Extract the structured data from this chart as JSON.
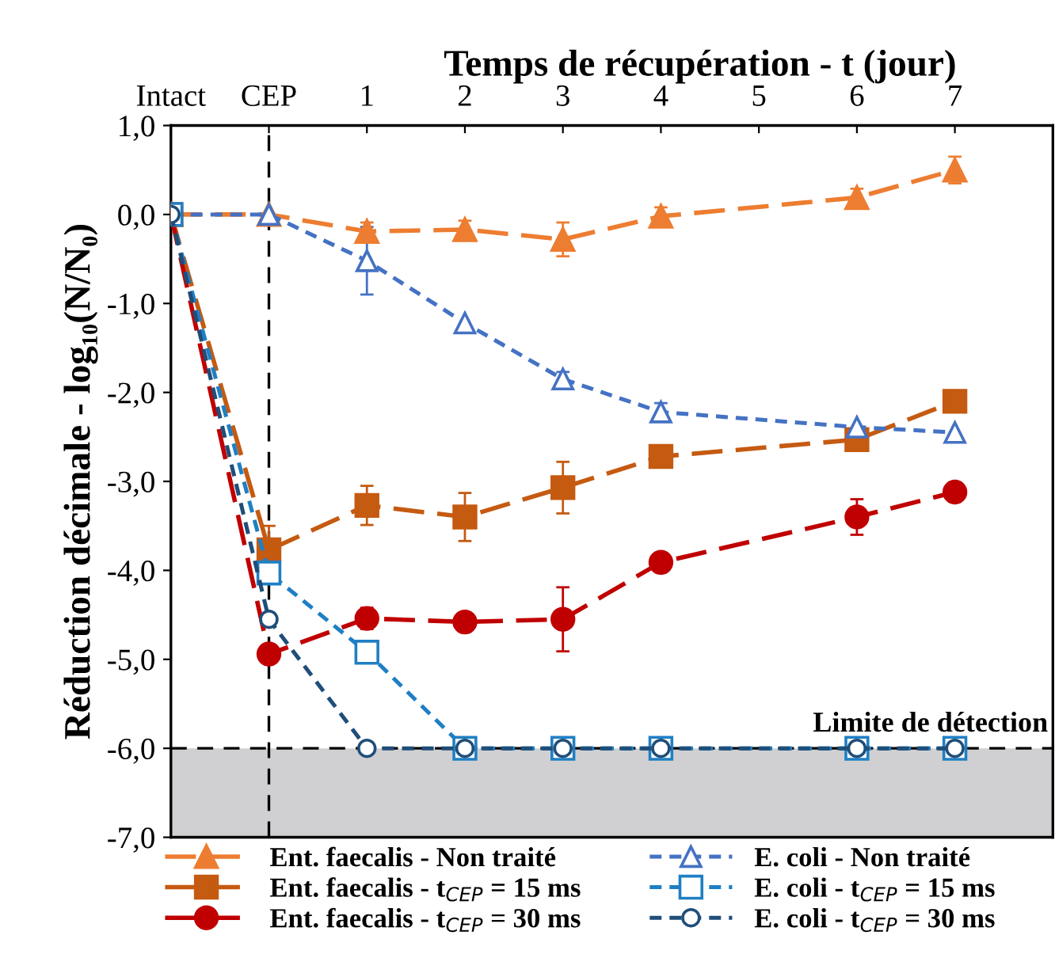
{
  "chart_data": {
    "type": "line",
    "xlabel": "Temps de récupération - t (jour)",
    "ylabel": "Réduction décimale - log₁₀(N/N₀)",
    "x": [
      -1,
      0,
      1,
      2,
      3,
      4,
      6,
      7
    ],
    "xlim": [
      -1,
      8
    ],
    "xticks": [
      {
        "value": -1,
        "label": "Intact"
      },
      {
        "value": 0,
        "label": "CEP"
      },
      1,
      2,
      3,
      4,
      5,
      6,
      7
    ],
    "ylim": [
      -7,
      1
    ],
    "yticks": [
      {
        "value": 1,
        "label": "1,0"
      },
      {
        "value": 0,
        "label": "0,0"
      },
      {
        "value": -1,
        "label": "-1,0"
      },
      {
        "value": -2,
        "label": "-2,0"
      },
      {
        "value": -3,
        "label": "-3,0"
      },
      {
        "value": -4,
        "label": "-4,0"
      },
      {
        "value": -5,
        "label": "-5,0"
      },
      {
        "value": -6,
        "label": "-6,0"
      },
      {
        "value": -7,
        "label": "-7,0"
      }
    ],
    "grid": false,
    "legend": "bottom",
    "series": [
      {
        "name": "Ent. faecalis - Non traité",
        "color": "#ed7d31",
        "marker": "triangle",
        "line_style": "dashed",
        "values": [
          0,
          0,
          -0.19,
          -0.17,
          -0.28,
          -0.02,
          0.19,
          0.5
        ],
        "errors": [
          null,
          null,
          0.1,
          0.1,
          0.19,
          0.1,
          0.1,
          0.15
        ]
      },
      {
        "name": "Ent. faecalis - t$_{CEP}$ = 15 ms",
        "color": "#c55a11",
        "marker": "square",
        "line_style": "dashed",
        "values": [
          0,
          -3.77,
          -3.27,
          -3.4,
          -3.07,
          -2.72,
          -2.53,
          -2.1
        ],
        "errors": [
          null,
          0.27,
          0.22,
          0.27,
          0.29,
          0.08,
          0.1,
          null
        ]
      },
      {
        "name": "Ent. faecalis - t$_{CEP}$ = 30 ms",
        "color": "#c00000",
        "marker": "circle",
        "line_style": "dashed",
        "values": [
          0,
          -4.94,
          -4.54,
          -4.58,
          -4.55,
          -3.91,
          -3.4,
          -3.12
        ],
        "errors": [
          null,
          null,
          0.12,
          null,
          0.36,
          0.1,
          0.2,
          null
        ]
      },
      {
        "name": "E. coli - Non traité",
        "color": "#4472c4",
        "marker": "triangle",
        "line_style": "dotted",
        "values": [
          0,
          0,
          -0.52,
          -1.22,
          -1.85,
          -2.22,
          -2.39,
          -2.45
        ],
        "errors": [
          null,
          null,
          0.38,
          null,
          0.08,
          0.1,
          null,
          null
        ]
      },
      {
        "name": "E. coli - t$_{CEP}$ = 15 ms",
        "color": "#1f7fc4",
        "marker": "square",
        "line_style": "dotted",
        "values": [
          0,
          -4.03,
          -4.92,
          -6,
          -6,
          -6,
          -6,
          -6
        ]
      },
      {
        "name": "E. coli - t$_{CEP}$ = 30 ms",
        "color": "#1f4e79",
        "marker": "circle",
        "line_style": "dotted",
        "values": [
          0,
          -4.55,
          -6,
          -6,
          -6,
          -6,
          -6,
          -6
        ]
      }
    ],
    "ref_lines": [
      {
        "axis": "x",
        "value": 0,
        "label": null,
        "color": "#000000",
        "line_style": "dashed"
      },
      {
        "axis": "y",
        "value": -6,
        "label": "Limite de détection",
        "color": "#000000",
        "line_style": "dashed"
      }
    ],
    "bands": [
      {
        "axis": "y",
        "from": -7,
        "to": -6,
        "label": null,
        "color": "#d0d0d2"
      }
    ]
  }
}
